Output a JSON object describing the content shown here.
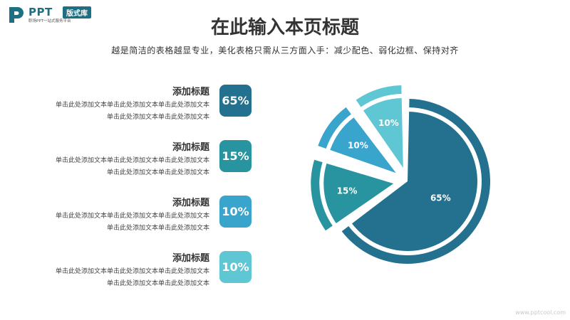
{
  "logo": {
    "brand": "PPT",
    "badge": "版式库",
    "tagline": "职场PPT一站式服务平台"
  },
  "header": {
    "title": "在此输入本页标题",
    "subtitle": "越是简洁的表格越显专业，美化表格只需从三方面入手：减少配色、弱化边框、保持对齐"
  },
  "items": [
    {
      "title": "添加标题",
      "desc_line1": "单击此处添加文本单击此处添加文本单击此处添加文本",
      "desc_line2": "单击此处添加文本单击此处添加文本",
      "value": "65%",
      "color": "#23718e"
    },
    {
      "title": "添加标题",
      "desc_line1": "单击此处添加文本单击此处添加文本单击此处添加文本",
      "desc_line2": "单击此处添加文本单击此处添加文本",
      "value": "15%",
      "color": "#28949f"
    },
    {
      "title": "添加标题",
      "desc_line1": "单击此处添加文本单击此处添加文本单击此处添加文本",
      "desc_line2": "单击此处添加文本单击此处添加文本",
      "value": "10%",
      "color": "#3aa5cc"
    },
    {
      "title": "添加标题",
      "desc_line1": "单击此处添加文本单击此处添加文本单击此处添加文本",
      "desc_line2": "单击此处添加文本单击此处添加文本",
      "value": "10%",
      "color": "#5fc6d4"
    }
  ],
  "chart_data": {
    "type": "pie",
    "categories": [
      "65%",
      "15%",
      "10%",
      "10%"
    ],
    "values": [
      65,
      15,
      10,
      10
    ],
    "data_labels": [
      "65%",
      "15%",
      "10%",
      "10%"
    ],
    "colors": [
      "#23718e",
      "#28949f",
      "#3aa5cc",
      "#5fc6d4"
    ],
    "style": "exploded pie with outer ring segments"
  },
  "watermark": "www.pptcool.com"
}
